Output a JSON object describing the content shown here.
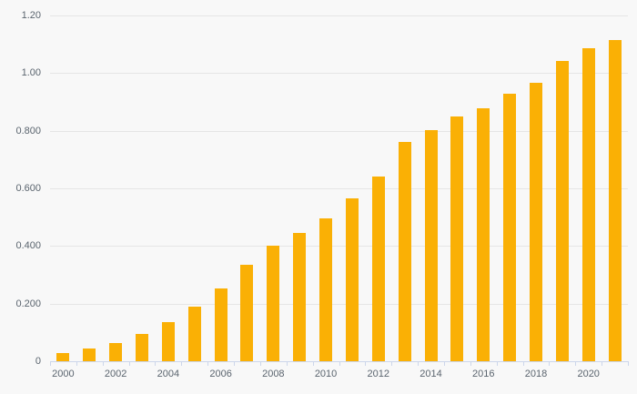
{
  "chart_data": {
    "type": "bar",
    "title": "",
    "xlabel": "",
    "ylabel": "",
    "categories": [
      "2000",
      "2001",
      "2002",
      "2003",
      "2004",
      "2005",
      "2006",
      "2007",
      "2008",
      "2009",
      "2010",
      "2011",
      "2012",
      "2013",
      "2014",
      "2015",
      "2016",
      "2017",
      "2018",
      "2019",
      "2020",
      "2021"
    ],
    "values": [
      0.028,
      0.045,
      0.064,
      0.094,
      0.137,
      0.188,
      0.253,
      0.335,
      0.402,
      0.445,
      0.496,
      0.565,
      0.641,
      0.762,
      0.802,
      0.851,
      0.879,
      0.93,
      0.965,
      1.041,
      1.087,
      1.115
    ],
    "ylim": [
      0,
      1.2
    ],
    "y_ticks": [
      {
        "value": 0,
        "label": "0"
      },
      {
        "value": 0.2,
        "label": "0.200"
      },
      {
        "value": 0.4,
        "label": "0.400"
      },
      {
        "value": 0.6,
        "label": "0.600"
      },
      {
        "value": 0.8,
        "label": "0.800"
      },
      {
        "value": 1.0,
        "label": "1.00"
      },
      {
        "value": 1.2,
        "label": "1.20"
      }
    ],
    "x_tick_labels": [
      "2000",
      "2002",
      "2004",
      "2006",
      "2008",
      "2010",
      "2012",
      "2014",
      "2016",
      "2018",
      "2020"
    ],
    "grid": true,
    "legend": "none"
  },
  "colors": {
    "background": "#f8f8f8",
    "bar": "#fab005",
    "gridline": "#e5e5e5",
    "axis_line": "#ccd6eb",
    "tick": "#ccd6eb",
    "label": "#5a646e"
  }
}
